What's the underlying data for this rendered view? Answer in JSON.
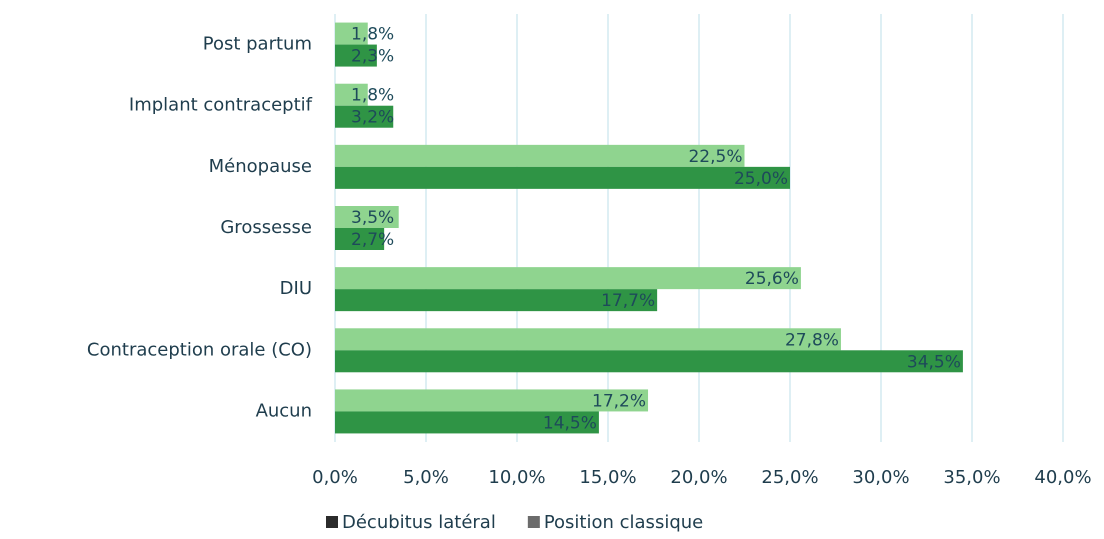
{
  "chart_data": {
    "type": "hbar",
    "categories": [
      "Post partum",
      "Implant contraceptif",
      "Ménopause",
      "Grossesse",
      "DIU",
      "Contraception orale (CO)",
      "Aucun"
    ],
    "series": [
      {
        "name": "Position classique",
        "color": "#8fd48f",
        "legend_color": "#6b6b6b",
        "values": [
          1.8,
          1.8,
          22.5,
          3.5,
          25.6,
          27.8,
          17.2
        ],
        "value_labels": [
          "1,8%",
          "1,8%",
          "22,5%",
          "3,5%",
          "25,6%",
          "27,8%",
          "17,2%"
        ]
      },
      {
        "name": "Décubitus latéral",
        "color": "#2f9445",
        "legend_color": "#2b2b2b",
        "values": [
          2.3,
          3.2,
          25.0,
          2.7,
          17.7,
          34.5,
          14.5
        ],
        "value_labels": [
          "2,3%",
          "3,2%",
          "25,0%",
          "2,7%",
          "17,7%",
          "34,5%",
          "14,5%"
        ]
      }
    ],
    "legend_order": [
      1,
      0
    ],
    "xlim": [
      0,
      40
    ],
    "xticks": [
      {
        "value": 0,
        "label": "0,0%"
      },
      {
        "value": 5,
        "label": "5,0%"
      },
      {
        "value": 10,
        "label": "10,0%"
      },
      {
        "value": 15,
        "label": "15,0%"
      },
      {
        "value": 20,
        "label": "20,0%"
      },
      {
        "value": 25,
        "label": "25,0%"
      },
      {
        "value": 30,
        "label": "30,0%"
      },
      {
        "value": 35,
        "label": "35,0%"
      },
      {
        "value": 40,
        "label": "40,0%"
      }
    ],
    "grid": true
  }
}
